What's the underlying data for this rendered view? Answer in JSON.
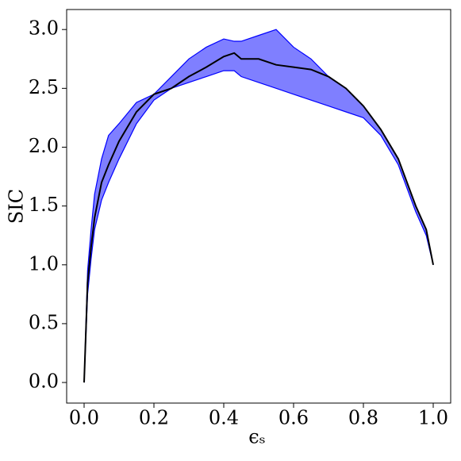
{
  "chart_data": {
    "type": "line",
    "xlabel": "ϵₛ",
    "ylabel": "SIC",
    "x": [
      0,
      0.01,
      0.02,
      0.03,
      0.05,
      0.07,
      0.1,
      0.15,
      0.2,
      0.25,
      0.3,
      0.35,
      0.4,
      0.43,
      0.45,
      0.5,
      0.55,
      0.6,
      0.65,
      0.7,
      0.75,
      0.8,
      0.85,
      0.9,
      0.95,
      0.98,
      1.0
    ],
    "series": [
      {
        "color": "#000000",
        "values": [
          0,
          0.85,
          1.15,
          1.4,
          1.7,
          1.85,
          2.05,
          2.3,
          2.45,
          2.5,
          2.6,
          2.68,
          2.77,
          2.8,
          2.75,
          2.75,
          2.7,
          2.68,
          2.66,
          2.6,
          2.5,
          2.35,
          2.15,
          1.9,
          1.5,
          1.3,
          1.0
        ]
      }
    ],
    "band": {
      "color": "#0000ff",
      "upper": [
        0,
        0.95,
        1.3,
        1.6,
        1.9,
        2.1,
        2.2,
        2.38,
        2.45,
        2.6,
        2.75,
        2.85,
        2.92,
        2.9,
        2.9,
        2.95,
        3.0,
        2.85,
        2.75,
        2.6,
        2.5,
        2.35,
        2.15,
        1.9,
        1.5,
        1.3,
        1.0
      ],
      "lower": [
        0,
        0.75,
        1.05,
        1.3,
        1.55,
        1.7,
        1.9,
        2.2,
        2.4,
        2.5,
        2.55,
        2.6,
        2.65,
        2.65,
        2.6,
        2.55,
        2.5,
        2.45,
        2.4,
        2.35,
        2.3,
        2.25,
        2.1,
        1.85,
        1.45,
        1.25,
        1.0
      ]
    },
    "xlim": [
      -0.05,
      1.05
    ],
    "ylim": [
      -0.175,
      3.17
    ],
    "xticks": [
      {
        "value": 0,
        "label": "0.0"
      },
      0.2,
      0.4,
      0.6,
      0.8,
      {
        "value": 1,
        "label": "1.0"
      }
    ],
    "yticks": [
      {
        "value": 0,
        "label": "0.0"
      },
      0.5,
      {
        "value": 1,
        "label": "1.0"
      },
      1.5,
      {
        "value": 2,
        "label": "2.0"
      },
      2.5,
      {
        "value": 3,
        "label": "3.0"
      }
    ],
    "grid": false
  }
}
